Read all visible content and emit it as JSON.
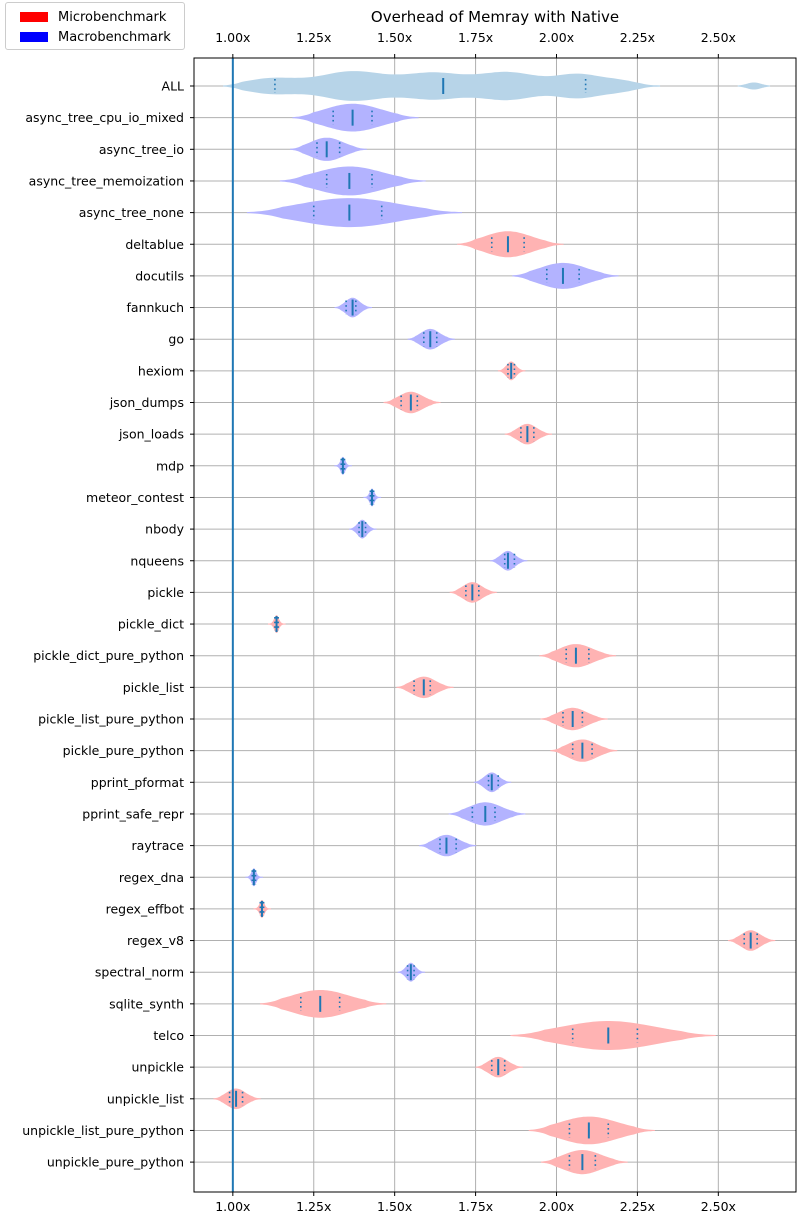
{
  "chart_data": {
    "type": "violin",
    "title": "Overhead of Memray with Native",
    "xlabel": "",
    "ylabel": "",
    "xlim": [
      0.88,
      2.74
    ],
    "xticks": [
      1.0,
      1.25,
      1.5,
      1.75,
      2.0,
      2.25,
      2.5
    ],
    "xtick_labels": [
      "1.00x",
      "1.25x",
      "1.50x",
      "1.75x",
      "2.00x",
      "2.25x",
      "2.50x"
    ],
    "baseline": 1.0,
    "grid": true,
    "legend_position": "top-left",
    "legend": [
      {
        "label": "Microbenchmark",
        "color": "#ff0000",
        "fill": "#ffb3b3"
      },
      {
        "label": "Macrobenchmark",
        "color": "#0000ff",
        "fill": "#b3b3ff"
      }
    ],
    "all_fill": "#b7d4e8",
    "marker_color": "#1f77b4",
    "series": [
      {
        "name": "ALL",
        "group": "all",
        "median": 1.65,
        "q1": 1.13,
        "q3": 2.09
      },
      {
        "name": "async_tree_cpu_io_mixed",
        "group": "macro",
        "median": 1.37,
        "q1": 1.31,
        "q3": 1.43
      },
      {
        "name": "async_tree_io",
        "group": "macro",
        "median": 1.29,
        "q1": 1.26,
        "q3": 1.33
      },
      {
        "name": "async_tree_memoization",
        "group": "macro",
        "median": 1.36,
        "q1": 1.29,
        "q3": 1.43
      },
      {
        "name": "async_tree_none",
        "group": "macro",
        "median": 1.36,
        "q1": 1.25,
        "q3": 1.46
      },
      {
        "name": "deltablue",
        "group": "micro",
        "median": 1.85,
        "q1": 1.8,
        "q3": 1.9
      },
      {
        "name": "docutils",
        "group": "macro",
        "median": 2.02,
        "q1": 1.97,
        "q3": 2.07
      },
      {
        "name": "fannkuch",
        "group": "macro",
        "median": 1.37,
        "q1": 1.35,
        "q3": 1.38
      },
      {
        "name": "go",
        "group": "macro",
        "median": 1.61,
        "q1": 1.59,
        "q3": 1.63
      },
      {
        "name": "hexiom",
        "group": "micro",
        "median": 1.86,
        "q1": 1.85,
        "q3": 1.87
      },
      {
        "name": "json_dumps",
        "group": "micro",
        "median": 1.55,
        "q1": 1.52,
        "q3": 1.57
      },
      {
        "name": "json_loads",
        "group": "micro",
        "median": 1.91,
        "q1": 1.89,
        "q3": 1.93
      },
      {
        "name": "mdp",
        "group": "macro",
        "median": 1.34,
        "q1": 1.335,
        "q3": 1.345
      },
      {
        "name": "meteor_contest",
        "group": "macro",
        "median": 1.43,
        "q1": 1.425,
        "q3": 1.435
      },
      {
        "name": "nbody",
        "group": "macro",
        "median": 1.4,
        "q1": 1.39,
        "q3": 1.41
      },
      {
        "name": "nqueens",
        "group": "macro",
        "median": 1.85,
        "q1": 1.84,
        "q3": 1.87
      },
      {
        "name": "pickle",
        "group": "micro",
        "median": 1.74,
        "q1": 1.72,
        "q3": 1.76
      },
      {
        "name": "pickle_dict",
        "group": "micro",
        "median": 1.135,
        "q1": 1.13,
        "q3": 1.14
      },
      {
        "name": "pickle_dict_pure_python",
        "group": "micro",
        "median": 2.06,
        "q1": 2.03,
        "q3": 2.1
      },
      {
        "name": "pickle_list",
        "group": "micro",
        "median": 1.59,
        "q1": 1.56,
        "q3": 1.61
      },
      {
        "name": "pickle_list_pure_python",
        "group": "micro",
        "median": 2.05,
        "q1": 2.02,
        "q3": 2.08
      },
      {
        "name": "pickle_pure_python",
        "group": "micro",
        "median": 2.08,
        "q1": 2.05,
        "q3": 2.11
      },
      {
        "name": "pprint_pformat",
        "group": "macro",
        "median": 1.8,
        "q1": 1.79,
        "q3": 1.82
      },
      {
        "name": "pprint_safe_repr",
        "group": "macro",
        "median": 1.78,
        "q1": 1.74,
        "q3": 1.81
      },
      {
        "name": "raytrace",
        "group": "macro",
        "median": 1.66,
        "q1": 1.64,
        "q3": 1.69
      },
      {
        "name": "regex_dna",
        "group": "macro",
        "median": 1.065,
        "q1": 1.06,
        "q3": 1.07
      },
      {
        "name": "regex_effbot",
        "group": "micro",
        "median": 1.09,
        "q1": 1.085,
        "q3": 1.095
      },
      {
        "name": "regex_v8",
        "group": "micro",
        "median": 2.6,
        "q1": 2.58,
        "q3": 2.62
      },
      {
        "name": "spectral_norm",
        "group": "macro",
        "median": 1.55,
        "q1": 1.54,
        "q3": 1.56
      },
      {
        "name": "sqlite_synth",
        "group": "micro",
        "median": 1.27,
        "q1": 1.21,
        "q3": 1.33
      },
      {
        "name": "telco",
        "group": "micro",
        "median": 2.16,
        "q1": 2.05,
        "q3": 2.25
      },
      {
        "name": "unpickle",
        "group": "micro",
        "median": 1.82,
        "q1": 1.8,
        "q3": 1.84
      },
      {
        "name": "unpickle_list",
        "group": "micro",
        "median": 1.01,
        "q1": 0.99,
        "q3": 1.03
      },
      {
        "name": "unpickle_list_pure_python",
        "group": "micro",
        "median": 2.1,
        "q1": 2.04,
        "q3": 2.16
      },
      {
        "name": "unpickle_pure_python",
        "group": "micro",
        "median": 2.08,
        "q1": 2.04,
        "q3": 2.12
      }
    ]
  }
}
